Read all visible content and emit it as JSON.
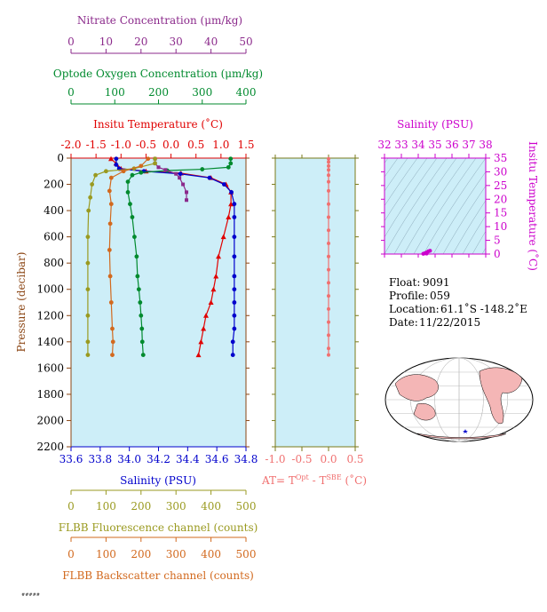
{
  "colors": {
    "nitrate": "#8b2a8b",
    "oxygen": "#008a2e",
    "temperature": "#e00000",
    "salinity": "#0000cc",
    "fluorescence": "#9a9a20",
    "backscatter": "#d2691e",
    "delta_t": "#f07070",
    "ts_axis": "#cc00cc",
    "panel_bg": "#cdeef8"
  },
  "chart_data": [
    {
      "type": "line",
      "panel": "profiles",
      "ylabel": "Pressure (decibar)",
      "ylim": [
        2200,
        0
      ],
      "yticks": [
        0,
        200,
        400,
        600,
        800,
        1000,
        1200,
        1400,
        1600,
        1800,
        2000,
        2200
      ],
      "axes": {
        "nitrate": {
          "label": "Nitrate Concentration (μm/kg)",
          "range": [
            0,
            50
          ],
          "ticks": [
            0,
            10,
            20,
            30,
            40,
            50
          ]
        },
        "oxygen": {
          "label": "Optode Oxygen Concentration (μm/kg)",
          "range": [
            0,
            400
          ],
          "ticks": [
            0,
            100,
            200,
            300,
            400
          ]
        },
        "temperature": {
          "label": "Insitu Temperature (˚C)",
          "range": [
            -2.0,
            1.5
          ],
          "ticks": [
            "-2.0",
            "-1.5",
            "-1.0",
            "-0.5",
            "0.0",
            "0.5",
            "1.0",
            "1.5"
          ]
        },
        "salinity": {
          "label": "Salinity (PSU)",
          "range": [
            33.6,
            34.8
          ],
          "ticks": [
            "33.6",
            "33.8",
            "34.0",
            "34.2",
            "34.4",
            "34.6",
            "34.8"
          ]
        },
        "fluorescence": {
          "label": "FLBB Fluorescence channel (counts)",
          "range": [
            0,
            500
          ],
          "ticks": [
            0,
            100,
            200,
            300,
            400,
            500
          ]
        },
        "backscatter": {
          "label": "FLBB Backscatter channel (counts)",
          "range": [
            0,
            500
          ],
          "ticks": [
            0,
            100,
            200,
            300,
            400,
            500
          ]
        }
      },
      "series": [
        {
          "key": "temperature",
          "marker": "triangle",
          "points": [
            [
              -1.2,
              5
            ],
            [
              -1.1,
              40
            ],
            [
              -1.0,
              80
            ],
            [
              -0.5,
              100
            ],
            [
              0.2,
              115
            ],
            [
              0.8,
              150
            ],
            [
              1.1,
              200
            ],
            [
              1.2,
              260
            ],
            [
              1.2,
              350
            ],
            [
              1.15,
              450
            ],
            [
              1.05,
              600
            ],
            [
              0.95,
              750
            ],
            [
              0.9,
              900
            ],
            [
              0.85,
              1000
            ],
            [
              0.8,
              1100
            ],
            [
              0.7,
              1200
            ],
            [
              0.65,
              1300
            ],
            [
              0.6,
              1400
            ],
            [
              0.55,
              1500
            ]
          ]
        },
        {
          "key": "salinity",
          "marker": "circle",
          "points": [
            [
              33.91,
              5
            ],
            [
              33.91,
              50
            ],
            [
              33.93,
              80
            ],
            [
              34.1,
              100
            ],
            [
              34.35,
              120
            ],
            [
              34.55,
              150
            ],
            [
              34.65,
              200
            ],
            [
              34.7,
              260
            ],
            [
              34.72,
              350
            ],
            [
              34.72,
              450
            ],
            [
              34.72,
              600
            ],
            [
              34.72,
              750
            ],
            [
              34.72,
              900
            ],
            [
              34.72,
              1000
            ],
            [
              34.72,
              1100
            ],
            [
              34.72,
              1200
            ],
            [
              34.72,
              1300
            ],
            [
              34.71,
              1400
            ],
            [
              34.71,
              1500
            ]
          ]
        },
        {
          "key": "oxygen",
          "marker": "circle",
          "points": [
            [
              365,
              5
            ],
            [
              365,
              40
            ],
            [
              360,
              70
            ],
            [
              300,
              85
            ],
            [
              220,
              95
            ],
            [
              160,
              110
            ],
            [
              140,
              130
            ],
            [
              130,
              180
            ],
            [
              130,
              260
            ],
            [
              135,
              350
            ],
            [
              140,
              450
            ],
            [
              145,
              600
            ],
            [
              150,
              750
            ],
            [
              152,
              900
            ],
            [
              155,
              1000
            ],
            [
              158,
              1100
            ],
            [
              160,
              1200
            ],
            [
              162,
              1300
            ],
            [
              163,
              1400
            ],
            [
              165,
              1500
            ]
          ]
        },
        {
          "key": "nitrate",
          "marker": "square",
          "points": [
            [
              24,
              5
            ],
            [
              24,
              40
            ],
            [
              25,
              70
            ],
            [
              27,
              90
            ],
            [
              30,
              120
            ],
            [
              31,
              150
            ],
            [
              32,
              200
            ],
            [
              33,
              260
            ],
            [
              33,
              320
            ]
          ]
        },
        {
          "key": "fluorescence",
          "marker": "circle",
          "points": [
            [
              240,
              5
            ],
            [
              240,
              40
            ],
            [
              180,
              80
            ],
            [
              100,
              100
            ],
            [
              70,
              130
            ],
            [
              60,
              200
            ],
            [
              55,
              300
            ],
            [
              50,
              400
            ],
            [
              48,
              600
            ],
            [
              48,
              800
            ],
            [
              48,
              1000
            ],
            [
              48,
              1200
            ],
            [
              48,
              1400
            ],
            [
              48,
              1500
            ]
          ]
        },
        {
          "key": "backscatter",
          "marker": "circle",
          "points": [
            [
              220,
              5
            ],
            [
              200,
              60
            ],
            [
              150,
              100
            ],
            [
              115,
              150
            ],
            [
              110,
              250
            ],
            [
              115,
              350
            ],
            [
              112,
              500
            ],
            [
              110,
              700
            ],
            [
              112,
              900
            ],
            [
              115,
              1100
            ],
            [
              118,
              1300
            ],
            [
              120,
              1400
            ],
            [
              118,
              1500
            ]
          ]
        }
      ]
    },
    {
      "type": "line",
      "panel": "delta_t",
      "xlabel_prefix": "AT= T",
      "xlabel_sup1": "Opt",
      "xlabel_mid": " - T",
      "xlabel_sup2": "SBE",
      "xlabel_suffix": " (˚C)",
      "xlim": [
        -1.0,
        0.5
      ],
      "xticks": [
        "-1.0",
        "-0.5",
        "0.0",
        "0.5"
      ],
      "ylim": [
        2200,
        0
      ],
      "points": [
        [
          0.0,
          5
        ],
        [
          0.0,
          30
        ],
        [
          0.0,
          60
        ],
        [
          0.0,
          90
        ],
        [
          0.0,
          130
        ],
        [
          0.0,
          180
        ],
        [
          0.0,
          250
        ],
        [
          0.0,
          350
        ],
        [
          0.0,
          450
        ],
        [
          0.0,
          550
        ],
        [
          0.0,
          650
        ],
        [
          0.0,
          750
        ],
        [
          0.0,
          850
        ],
        [
          0.0,
          950
        ],
        [
          0.0,
          1050
        ],
        [
          0.0,
          1150
        ],
        [
          0.0,
          1250
        ],
        [
          0.0,
          1350
        ],
        [
          0.0,
          1450
        ],
        [
          0.0,
          1500
        ]
      ]
    },
    {
      "type": "scatter",
      "panel": "ts_diagram",
      "title": "Salinity (PSU)",
      "xlim": [
        32,
        38
      ],
      "xticks": [
        32,
        33,
        34,
        35,
        36,
        37,
        38
      ],
      "ylabel": "Insitu Temperature (˚C)",
      "ylim": [
        0,
        35
      ],
      "yticks": [
        0,
        5,
        10,
        15,
        20,
        25,
        30,
        35
      ],
      "points": [
        [
          34.4,
          0.3
        ],
        [
          34.5,
          0.6
        ],
        [
          34.6,
          1.0
        ],
        [
          34.7,
          1.2
        ],
        [
          34.5,
          0.2
        ],
        [
          34.3,
          0.1
        ]
      ]
    }
  ],
  "info": {
    "float_label": "Float:",
    "float_value": "9091",
    "profile_label": "Profile:",
    "profile_value": "059",
    "location_label": "Location:",
    "location_value": "61.1˚S  -148.2˚E",
    "date_label": "Date:",
    "date_value": "11/22/2015"
  },
  "footer_tag": "#####"
}
